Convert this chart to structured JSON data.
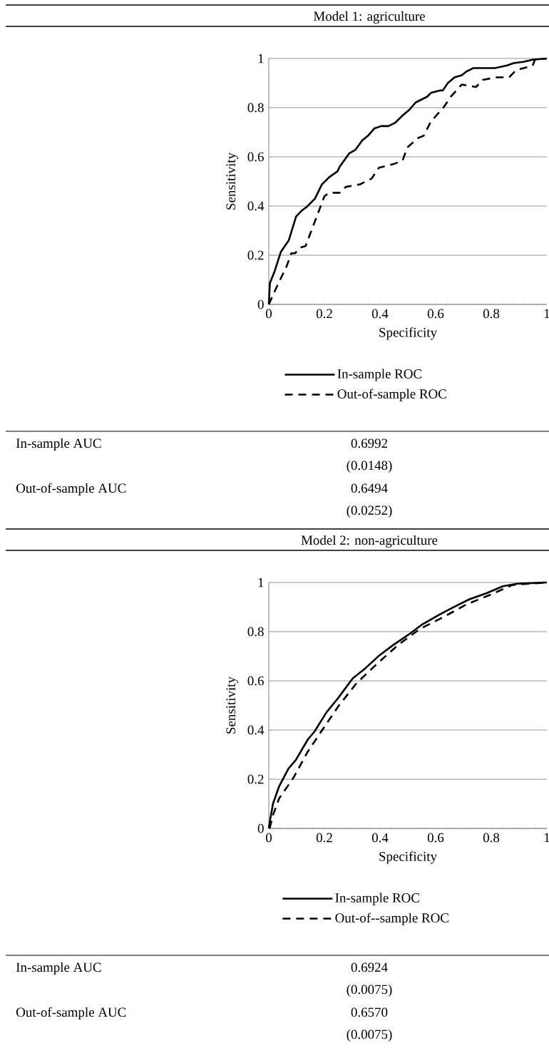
{
  "chart_data": [
    {
      "type": "line",
      "title": "Model 1: agriculture",
      "xlabel": "Specificity",
      "ylabel": "Sensitivity",
      "xlim": [
        0,
        1
      ],
      "ylim": [
        0,
        1
      ],
      "xticks": [
        0,
        0.2,
        0.4,
        0.6,
        0.8,
        1
      ],
      "yticks": [
        0,
        0.2,
        0.4,
        0.6,
        0.8,
        1
      ],
      "grid": "y",
      "legend": "bottom",
      "series": [
        {
          "name": "In-sample ROC",
          "color": "#000000",
          "line_style": "solid",
          "x": [
            0,
            0.004,
            0.021,
            0.043,
            0.072,
            0.098,
            0.119,
            0.136,
            0.166,
            0.191,
            0.217,
            0.247,
            0.255,
            0.289,
            0.311,
            0.336,
            0.357,
            0.379,
            0.404,
            0.43,
            0.455,
            0.481,
            0.506,
            0.528,
            0.57,
            0.583,
            0.617,
            0.626,
            0.643,
            0.668,
            0.694,
            0.711,
            0.736,
            0.813,
            0.855,
            0.881,
            0.915,
            0.949,
            1
          ],
          "values": [
            0,
            0.087,
            0.135,
            0.213,
            0.261,
            0.357,
            0.382,
            0.396,
            0.43,
            0.488,
            0.517,
            0.541,
            0.56,
            0.614,
            0.628,
            0.667,
            0.686,
            0.715,
            0.725,
            0.725,
            0.739,
            0.768,
            0.792,
            0.821,
            0.845,
            0.86,
            0.87,
            0.87,
            0.899,
            0.923,
            0.932,
            0.947,
            0.961,
            0.961,
            0.971,
            0.981,
            0.986,
            0.995,
            1
          ]
        },
        {
          "name": "Out-of-sample ROC",
          "color": "#000000",
          "line_style": "dashed",
          "x": [
            0,
            0.021,
            0.043,
            0.064,
            0.081,
            0.094,
            0.115,
            0.132,
            0.166,
            0.2,
            0.217,
            0.255,
            0.277,
            0.328,
            0.345,
            0.37,
            0.396,
            0.447,
            0.481,
            0.498,
            0.536,
            0.557,
            0.583,
            0.626,
            0.655,
            0.694,
            0.745,
            0.77,
            0.817,
            0.864,
            0.889,
            0.949,
            0.957,
            1
          ],
          "values": [
            0,
            0.053,
            0.106,
            0.155,
            0.208,
            0.208,
            0.232,
            0.237,
            0.338,
            0.44,
            0.454,
            0.454,
            0.478,
            0.488,
            0.498,
            0.512,
            0.556,
            0.57,
            0.585,
            0.638,
            0.676,
            0.686,
            0.744,
            0.797,
            0.845,
            0.894,
            0.884,
            0.913,
            0.923,
            0.923,
            0.952,
            0.971,
            0.995,
            1
          ]
        }
      ],
      "annotations": [
        "In-sample AUC",
        "0.6992",
        "(0.0148)",
        "Out-of-sample AUC",
        "0.6494",
        "(0.0252)"
      ]
    },
    {
      "type": "line",
      "title": "Model 2: non-agriculture",
      "xlabel": "Specificity",
      "ylabel": "Sensitivity",
      "xlim": [
        0,
        1
      ],
      "ylim": [
        0,
        1
      ],
      "xticks": [
        0,
        0.2,
        0.4,
        0.6,
        0.8,
        1
      ],
      "yticks": [
        0,
        0.2,
        0.4,
        0.6,
        0.8,
        1
      ],
      "grid": "y",
      "legend": "bottom",
      "series": [
        {
          "name": "In-sample ROC",
          "color": "#000000",
          "line_style": "solid",
          "x": [
            0,
            0.003,
            0.015,
            0.037,
            0.071,
            0.097,
            0.14,
            0.165,
            0.208,
            0.247,
            0.302,
            0.345,
            0.396,
            0.448,
            0.499,
            0.551,
            0.611,
            0.662,
            0.722,
            0.782,
            0.842,
            0.893,
            1
          ],
          "values": [
            0,
            0.024,
            0.1,
            0.171,
            0.244,
            0.278,
            0.361,
            0.395,
            0.473,
            0.527,
            0.61,
            0.649,
            0.702,
            0.746,
            0.785,
            0.829,
            0.868,
            0.898,
            0.932,
            0.956,
            0.985,
            0.995,
            1
          ]
        },
        {
          "name": "Out-of--sample ROC",
          "color": "#000000",
          "line_style": "dashed",
          "x": [
            0.003,
            0.015,
            0.037,
            0.088,
            0.14,
            0.195,
            0.251,
            0.315,
            0.388,
            0.465,
            0.542,
            0.627,
            0.713,
            0.799,
            0.876,
            1
          ],
          "values": [
            0,
            0.054,
            0.122,
            0.205,
            0.312,
            0.405,
            0.498,
            0.59,
            0.668,
            0.746,
            0.81,
            0.859,
            0.912,
            0.951,
            0.99,
            1
          ]
        }
      ],
      "annotations": [
        "In-sample AUC",
        "0.6924",
        "(0.0075)",
        "Out-of-sample AUC",
        "0.6570",
        "(0.0075)"
      ]
    }
  ]
}
